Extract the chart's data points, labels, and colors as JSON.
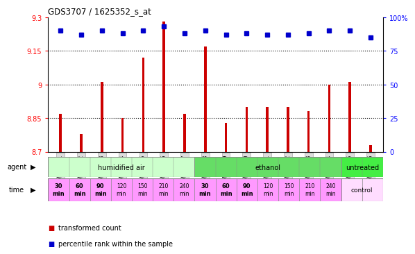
{
  "title": "GDS3707 / 1625352_s_at",
  "samples": [
    "GSM455231",
    "GSM455232",
    "GSM455233",
    "GSM455234",
    "GSM455235",
    "GSM455236",
    "GSM455237",
    "GSM455238",
    "GSM455239",
    "GSM455240",
    "GSM455241",
    "GSM455242",
    "GSM455243",
    "GSM455244",
    "GSM455245",
    "GSM455246"
  ],
  "bar_values": [
    8.87,
    8.78,
    9.01,
    8.85,
    9.12,
    9.28,
    8.87,
    9.17,
    8.83,
    8.9,
    8.9,
    8.9,
    8.88,
    9.0,
    9.01,
    8.73
  ],
  "dot_values": [
    90,
    87,
    90,
    88,
    90,
    93,
    88,
    90,
    87,
    88,
    87,
    87,
    88,
    90,
    90,
    85
  ],
  "ylim": [
    8.7,
    9.3
  ],
  "y2lim": [
    0,
    100
  ],
  "yticks": [
    8.7,
    8.85,
    9.0,
    9.15,
    9.3
  ],
  "ytick_labels": [
    "8.7",
    "8.85",
    "9",
    "9.15",
    "9.3"
  ],
  "y2ticks": [
    0,
    25,
    50,
    75,
    100
  ],
  "y2tick_labels": [
    "0",
    "25",
    "50",
    "75",
    "100%"
  ],
  "hlines": [
    8.85,
    9.0,
    9.15
  ],
  "bar_color": "#cc0000",
  "dot_color": "#0000cc",
  "agent_groups": [
    {
      "label": "humidified air",
      "start": 0,
      "end": 7,
      "color": "#ccffcc"
    },
    {
      "label": "ethanol",
      "start": 7,
      "end": 14,
      "color": "#66dd66"
    },
    {
      "label": "untreated",
      "start": 14,
      "end": 16,
      "color": "#44ee44"
    }
  ],
  "time_color_pink": "#ff99ff",
  "time_color_light": "#ffddff",
  "bg_color": "#ffffff",
  "legend_bar_label": "transformed count",
  "legend_dot_label": "percentile rank within the sample",
  "bar_width": 0.12
}
